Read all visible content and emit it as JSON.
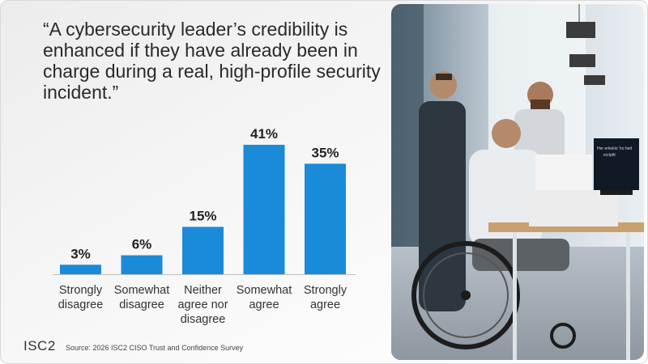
{
  "quote": "“A cybersecurity leader’s credibility is enhanced if they have already been in charge during a real, high-profile security incident.”",
  "footer": {
    "logo": "ISC2",
    "source": "Source: 2026 ISC2 CISO Trust and Confidence Survey"
  },
  "photo": {
    "screen_text_1": "Her erkeklo' ho hed",
    "screen_text_2": "ecriptlt"
  },
  "chart_data": {
    "type": "bar",
    "categories": [
      [
        "Strongly",
        "disagree"
      ],
      [
        "Somewhat",
        "disagree"
      ],
      [
        "Neither",
        "agree nor",
        "disagree"
      ],
      [
        "Somewhat",
        "agree"
      ],
      [
        "Strongly",
        "agree"
      ]
    ],
    "values": [
      3,
      6,
      15,
      41,
      35
    ],
    "value_labels": [
      "3%",
      "6%",
      "15%",
      "41%",
      "35%"
    ],
    "unit": "%",
    "ylim": [
      0,
      41
    ],
    "grid": false,
    "bar_color": "#1a8bd8"
  }
}
